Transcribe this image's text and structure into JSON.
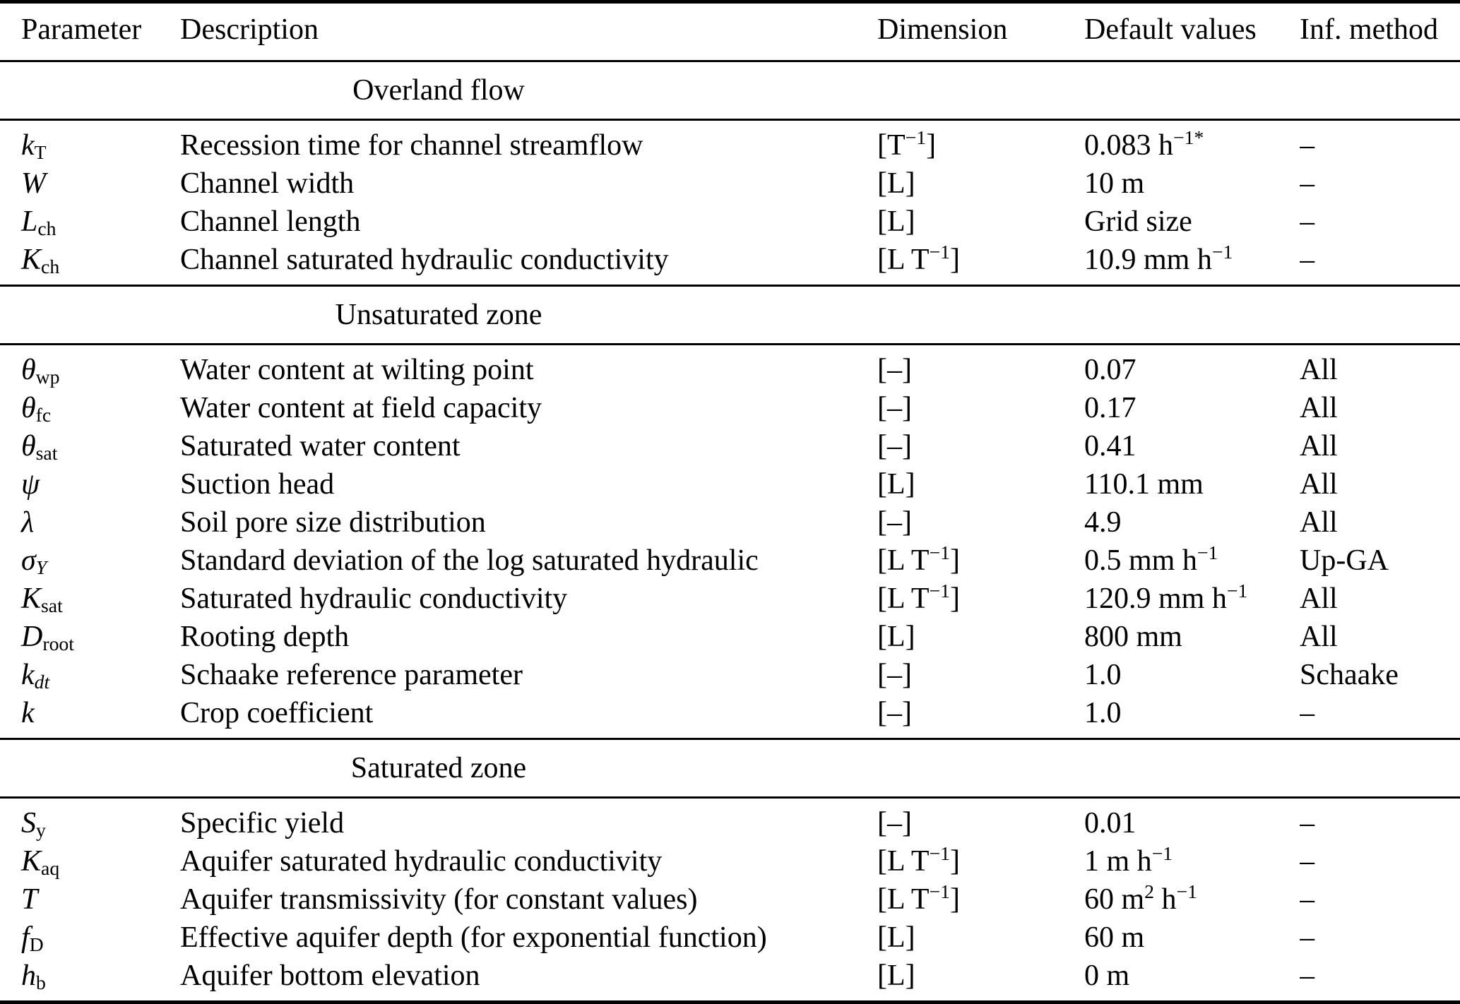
{
  "table": {
    "columns": [
      "Parameter",
      "Description",
      "Dimension",
      "Default values",
      "Inf. method"
    ],
    "sections": [
      {
        "title": "Overland flow",
        "rows": [
          {
            "parameter": "//k//_{T}",
            "description": "Recession time for channel streamflow",
            "dimension": "[T^{−1}]",
            "default_value": "0.083 h^{−1*}",
            "inf_method": "–"
          },
          {
            "parameter": "//W//",
            "description": "Channel width",
            "dimension": "[L]",
            "default_value": "10 m",
            "inf_method": "–"
          },
          {
            "parameter": "//L//_{ch}",
            "description": "Channel length",
            "dimension": "[L]",
            "default_value": "Grid size",
            "inf_method": "–"
          },
          {
            "parameter": "//K//_{ch}",
            "description": "Channel saturated hydraulic conductivity",
            "dimension": "[L T^{−1}]",
            "default_value": "10.9 mm h^{−1}",
            "inf_method": "–"
          }
        ]
      },
      {
        "title": "Unsaturated zone",
        "rows": [
          {
            "parameter": "//θ//_{wp}",
            "description": "Water content at wilting point",
            "dimension": "[–]",
            "default_value": "0.07",
            "inf_method": "All"
          },
          {
            "parameter": "//θ//_{fc}",
            "description": "Water content at field capacity",
            "dimension": "[–]",
            "default_value": "0.17",
            "inf_method": "All"
          },
          {
            "parameter": "//θ//_{sat}",
            "description": "Saturated water content",
            "dimension": "[–]",
            "default_value": "0.41",
            "inf_method": "All"
          },
          {
            "parameter": "//ψ//",
            "description": "Suction head",
            "dimension": "[L]",
            "default_value": "110.1 mm",
            "inf_method": "All"
          },
          {
            "parameter": "//λ//",
            "description": "Soil pore size distribution",
            "dimension": "[–]",
            "default_value": "4.9",
            "inf_method": "All"
          },
          {
            "parameter": "//σ//_{//Y//}",
            "description": "Standard deviation of the log saturated hydraulic",
            "dimension": "[L T^{−1}]",
            "default_value": "0.5 mm h^{−1}",
            "inf_method": "Up-GA"
          },
          {
            "parameter": "//K//_{sat}",
            "description": "Saturated hydraulic conductivity",
            "dimension": "[L T^{−1}]",
            "default_value": "120.9 mm h^{−1}",
            "inf_method": "All"
          },
          {
            "parameter": "//D//_{root}",
            "description": "Rooting depth",
            "dimension": "[L]",
            "default_value": "800 mm",
            "inf_method": "All"
          },
          {
            "parameter": "//k//_{//dt//}",
            "description": "Schaake reference parameter",
            "dimension": "[–]",
            "default_value": "1.0",
            "inf_method": "Schaake"
          },
          {
            "parameter": "//k//",
            "description": "Crop coefficient",
            "dimension": "[–]",
            "default_value": "1.0",
            "inf_method": "–"
          }
        ]
      },
      {
        "title": "Saturated zone",
        "rows": [
          {
            "parameter": "//S//_{y}",
            "description": "Specific yield",
            "dimension": "[–]",
            "default_value": "0.01",
            "inf_method": "–"
          },
          {
            "parameter": "//K//_{aq}",
            "description": "Aquifer saturated hydraulic conductivity",
            "dimension": "[L T^{−1}]",
            "default_value": "1 m h^{−1}",
            "inf_method": "–"
          },
          {
            "parameter": "//T//",
            "description": "Aquifer transmissivity (for constant values)",
            "dimension": "[L T^{−1}]",
            "default_value": "60 m^{2} h^{−1}",
            "inf_method": "–"
          },
          {
            "parameter": "//f//_{D}",
            "description": "Effective aquifer depth (for exponential function)",
            "dimension": "[L]",
            "default_value": "60 m",
            "inf_method": "–"
          },
          {
            "parameter": "//h//_{b}",
            "description": "Aquifer bottom elevation",
            "dimension": "[L]",
            "default_value": "0 m",
            "inf_method": "–"
          }
        ]
      }
    ]
  }
}
